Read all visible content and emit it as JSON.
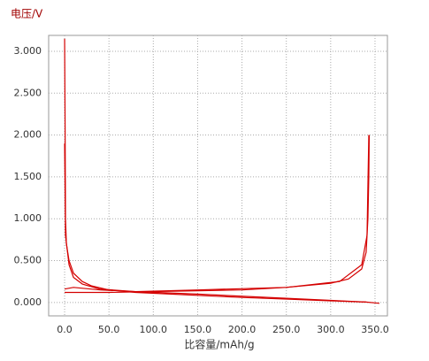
{
  "chart_data": {
    "type": "line",
    "y_label": "电压/V",
    "x_label": "比容量/mAh/g",
    "xlim": [
      -18,
      364
    ],
    "ylim": [
      -0.16,
      3.19
    ],
    "xticks": [
      {
        "value": 0,
        "label": "0.0"
      },
      {
        "value": 50,
        "label": "50.0"
      },
      {
        "value": 100,
        "label": "100.0"
      },
      {
        "value": 150,
        "label": "150.0"
      },
      {
        "value": 200,
        "label": "200.0"
      },
      {
        "value": 250,
        "label": "250.0"
      },
      {
        "value": 300,
        "label": "300.0"
      },
      {
        "value": 350,
        "label": "350.0"
      }
    ],
    "yticks": [
      {
        "value": 0,
        "label": "0.000"
      },
      {
        "value": 0.5,
        "label": "0.500"
      },
      {
        "value": 1,
        "label": "1.000"
      },
      {
        "value": 1.5,
        "label": "1.500"
      },
      {
        "value": 2,
        "label": "2.000"
      },
      {
        "value": 2.5,
        "label": "2.500"
      },
      {
        "value": 3,
        "label": "3.000"
      }
    ],
    "grid": true,
    "series": [
      {
        "color": "#d40000",
        "x": [
          0,
          0.5,
          1,
          2,
          5,
          10,
          20,
          30,
          50,
          80,
          120,
          160,
          200,
          250,
          300,
          340,
          355
        ],
        "values": [
          3.15,
          2.2,
          1.0,
          0.7,
          0.5,
          0.35,
          0.25,
          0.2,
          0.15,
          0.12,
          0.1,
          0.08,
          0.06,
          0.04,
          0.02,
          0.005,
          -0.01
        ]
      },
      {
        "color": "#d40000",
        "x": [
          0,
          1,
          5,
          10,
          20,
          40,
          80,
          150,
          250,
          340
        ],
        "values": [
          1.9,
          0.8,
          0.45,
          0.3,
          0.22,
          0.16,
          0.13,
          0.1,
          0.05,
          0.005
        ]
      },
      {
        "color": "#d40000",
        "x": [
          0,
          20,
          50,
          100,
          150,
          200,
          250,
          300,
          320,
          335,
          340,
          342,
          343,
          343.5
        ],
        "values": [
          0.12,
          0.12,
          0.12,
          0.13,
          0.14,
          0.15,
          0.18,
          0.23,
          0.28,
          0.4,
          0.6,
          1.0,
          1.5,
          2.0
        ]
      },
      {
        "color": "#d40000",
        "x": [
          0,
          10,
          40,
          80,
          150,
          250,
          310,
          335,
          341,
          343
        ],
        "values": [
          0.16,
          0.18,
          0.15,
          0.13,
          0.15,
          0.18,
          0.25,
          0.45,
          0.8,
          2.0
        ]
      }
    ]
  }
}
